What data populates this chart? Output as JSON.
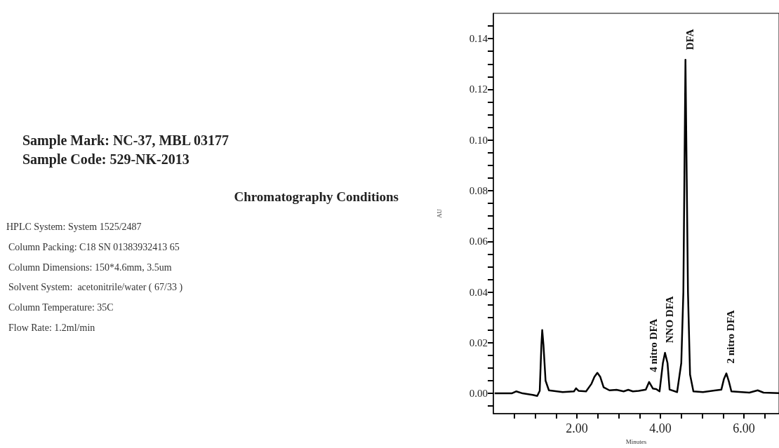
{
  "chart_data": {
    "type": "line",
    "xlabel": "Minutes",
    "ylabel": "AU",
    "annotations": [
      "Sample Mark: NC-37, MBL 03177",
      "Sample Code: 529-NK-2013",
      "Chromatography Conditions",
      "HPLC System: System 1525/2487",
      "Column Packing: C18 SN 01383932413 65",
      "Column Dimensions: 150*4.6mm, 3.5um",
      "Solvent System:  acetonitrile/water ( 67/33 )",
      "Column Temperature: 35C",
      "Flow Rate: 1.2ml/min",
      {
        "text": "4 nitro DFA",
        "x": 3.73,
        "y": 0.0045
      },
      {
        "text": "NNO DFA",
        "x": 4.11,
        "y": 0.016
      },
      {
        "text": "DFA",
        "x": 4.6,
        "y": 0.1317
      },
      {
        "text": "2 nitro DFA",
        "x": 5.58,
        "y": 0.0079
      }
    ],
    "series": [
      {
        "color": "#000000",
        "x": [
          0.03,
          0.44,
          0.55,
          0.7,
          0.94,
          1.05,
          1.11,
          1.15,
          1.17,
          1.2,
          1.25,
          1.33,
          1.66,
          1.93,
          1.98,
          2.04,
          2.22,
          2.35,
          2.42,
          2.49,
          2.56,
          2.64,
          2.78,
          2.95,
          3.12,
          3.23,
          3.34,
          3.48,
          3.65,
          3.73,
          3.82,
          3.9,
          3.98,
          4.06,
          4.11,
          4.17,
          4.22,
          4.4,
          4.5,
          4.55,
          4.6,
          4.66,
          4.71,
          4.79,
          5.02,
          5.46,
          5.52,
          5.58,
          5.64,
          5.7,
          6.13,
          6.33,
          6.47,
          6.84
        ],
        "values": [
          0,
          0,
          0.0008,
          0,
          -0.0006,
          -0.001,
          0.001,
          0.019,
          0.025,
          0.019,
          0.005,
          0.0012,
          0.0005,
          0.0008,
          0.002,
          0.001,
          0.0008,
          0.0038,
          0.0065,
          0.0081,
          0.0065,
          0.0024,
          0.0012,
          0.0014,
          0.0008,
          0.0014,
          0.0008,
          0.001,
          0.0015,
          0.0045,
          0.0019,
          0.0017,
          0.0008,
          0.012,
          0.016,
          0.012,
          0.0015,
          0.0005,
          0.012,
          0.04,
          0.1317,
          0.04,
          0.0074,
          0.0008,
          0.0005,
          0.0015,
          0.0056,
          0.0079,
          0.0047,
          0.0008,
          0.0003,
          0.0012,
          0.0003,
          0.0001
        ]
      }
    ],
    "xlim": [
      0,
      6.84
    ],
    "xticks": [
      {
        "value": 0.5,
        "label": null
      },
      {
        "value": 1,
        "label": null
      },
      {
        "value": 1.5,
        "label": null
      },
      {
        "value": 2,
        "label": "2.00"
      },
      {
        "value": 2.5,
        "label": null
      },
      {
        "value": 3,
        "label": null
      },
      {
        "value": 3.5,
        "label": null
      },
      {
        "value": 4,
        "label": "4.00"
      },
      {
        "value": 4.5,
        "label": null
      },
      {
        "value": 5,
        "label": null
      },
      {
        "value": 5.5,
        "label": null
      },
      {
        "value": 6,
        "label": "6.00"
      },
      {
        "value": 6.5,
        "label": null
      }
    ],
    "ylim": [
      -0.008,
      0.15
    ],
    "yticks": [
      {
        "value": -0.005,
        "label": null
      },
      {
        "value": 0,
        "label": "0.00"
      },
      {
        "value": 0.005,
        "label": null
      },
      {
        "value": 0.01,
        "label": null
      },
      {
        "value": 0.015,
        "label": null
      },
      {
        "value": 0.02,
        "label": "0.02"
      },
      {
        "value": 0.025,
        "label": null
      },
      {
        "value": 0.03,
        "label": null
      },
      {
        "value": 0.035,
        "label": null
      },
      {
        "value": 0.04,
        "label": "0.04"
      },
      {
        "value": 0.045,
        "label": null
      },
      {
        "value": 0.05,
        "label": null
      },
      {
        "value": 0.055,
        "label": null
      },
      {
        "value": 0.06,
        "label": "0.06"
      },
      {
        "value": 0.065,
        "label": null
      },
      {
        "value": 0.07,
        "label": null
      },
      {
        "value": 0.075,
        "label": null
      },
      {
        "value": 0.08,
        "label": "0.08"
      },
      {
        "value": 0.085,
        "label": null
      },
      {
        "value": 0.09,
        "label": null
      },
      {
        "value": 0.095,
        "label": null
      },
      {
        "value": 0.1,
        "label": "0.10"
      },
      {
        "value": 0.105,
        "label": null
      },
      {
        "value": 0.11,
        "label": null
      },
      {
        "value": 0.115,
        "label": null
      },
      {
        "value": 0.12,
        "label": "0.12"
      },
      {
        "value": 0.125,
        "label": null
      },
      {
        "value": 0.13,
        "label": null
      },
      {
        "value": 0.135,
        "label": null
      },
      {
        "value": 0.14,
        "label": "0.14"
      },
      {
        "value": 0.145,
        "label": null
      }
    ],
    "grid": false,
    "marker": "none",
    "line_style": "solid"
  }
}
